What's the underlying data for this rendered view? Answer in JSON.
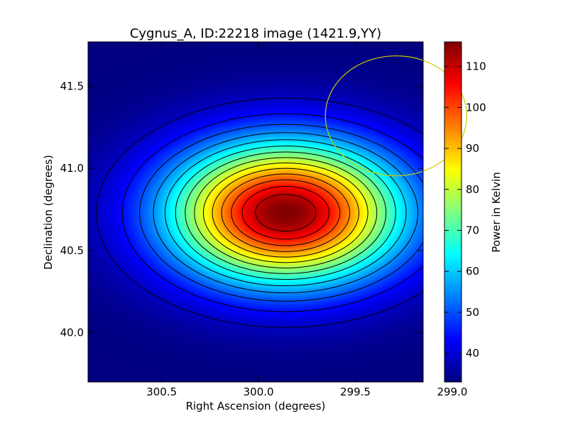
{
  "chart_data": {
    "type": "heatmap",
    "title": "Cygnus_A, ID:22218 image (1421.9,YY)",
    "xlabel": "Right Ascension (degrees)",
    "ylabel": "Declination (degrees)",
    "colorbar_label": "Power in Kelvin",
    "xlim": [
      300.88,
      299.15
    ],
    "ylim": [
      39.7,
      41.77
    ],
    "x_reversed": true,
    "x_ticks": [
      300.5,
      300.0,
      299.5,
      299.0
    ],
    "x_tick_labels": [
      "300.5",
      "300.0",
      "299.5",
      "299.0"
    ],
    "y_ticks": [
      40.0,
      40.5,
      41.0,
      41.5
    ],
    "y_tick_labels": [
      "40.0",
      "40.5",
      "41.0",
      "41.5"
    ],
    "colorbar_range": [
      33,
      116
    ],
    "colorbar_ticks": [
      40,
      50,
      60,
      70,
      80,
      90,
      100,
      110
    ],
    "colorbar_tick_labels": [
      "40",
      "50",
      "60",
      "70",
      "80",
      "90",
      "100",
      "110"
    ],
    "colormap": "jet",
    "peak": {
      "ra": 299.86,
      "dec": 40.73,
      "value": 116
    },
    "background_value": 33,
    "gaussian_sigma_deg": {
      "ra": 0.42,
      "dec": 0.3
    },
    "contours": {
      "count": 14,
      "color": "#000000"
    },
    "beam_circle": {
      "ra": 299.29,
      "dec": 41.32,
      "radius_deg": 0.365,
      "color": "#cccc00"
    },
    "grid": false,
    "legend": "none"
  }
}
